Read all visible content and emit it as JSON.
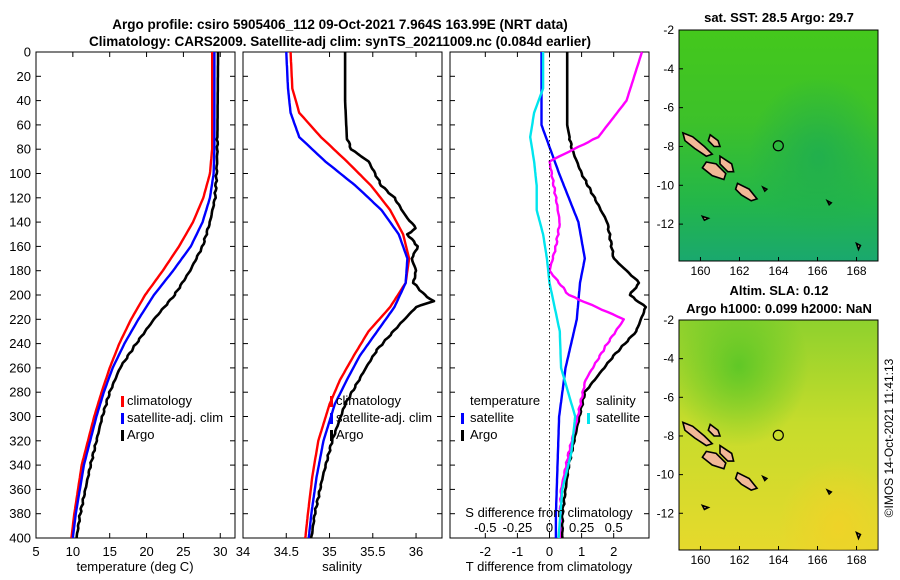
{
  "title_line1": "Argo profile: csiro 5905406_112 09-Oct-2021 7.964S 163.99E (NRT data)",
  "title_line2": "Climatology: CARS2009. Satellite-adj clim: synTS_20211009.nc (0.084d earlier)",
  "right_top_title": "sat. SST: 28.5 Argo: 29.7",
  "right_bottom_title1": "Altim. SLA: 0.12",
  "right_bottom_title2": "Argo h1000: 0.099 h2000: NaN",
  "credit": "©IMOS 14-Oct-2021 11:41:13",
  "colors": {
    "climatology": "#ff0000",
    "satellite": "#0000ff",
    "argo": "#000000",
    "salinity_diff": "#ff00ff",
    "satellite_s_diff": "#00e5ee"
  },
  "chart_data": [
    {
      "type": "line",
      "name": "temperature",
      "xlabel": "temperature (deg C)",
      "xlim": [
        5,
        32
      ],
      "xticks": [
        "5",
        "10",
        "15",
        "20",
        "25",
        "30"
      ],
      "ylim": [
        0,
        400
      ],
      "yticks": [
        "0",
        "20",
        "40",
        "60",
        "80",
        "100",
        "120",
        "140",
        "160",
        "180",
        "200",
        "220",
        "240",
        "260",
        "280",
        "300",
        "320",
        "340",
        "360",
        "380",
        "400"
      ],
      "legend": [
        "climatology",
        "satellite-adj. clim",
        "Argo"
      ],
      "series": [
        {
          "name": "climatology",
          "depth": [
            0,
            80,
            100,
            120,
            140,
            160,
            180,
            200,
            220,
            240,
            260,
            280,
            300,
            340,
            380,
            400
          ],
          "values": [
            28.9,
            28.9,
            28.6,
            27.7,
            26.3,
            24.4,
            22.2,
            19.8,
            17.9,
            16.3,
            15.0,
            13.9,
            12.9,
            11.2,
            10.2,
            9.8
          ]
        },
        {
          "name": "satellite-adj. clim",
          "depth": [
            0,
            80,
            100,
            120,
            140,
            160,
            180,
            200,
            220,
            240,
            260,
            280,
            300,
            340,
            380,
            400
          ],
          "values": [
            29.2,
            29.2,
            29.1,
            28.6,
            27.6,
            26.0,
            23.6,
            21.0,
            18.9,
            17.0,
            15.4,
            14.2,
            13.2,
            11.5,
            10.4,
            10.0
          ]
        },
        {
          "name": "Argo",
          "depth": [
            0,
            80,
            100,
            120,
            140,
            160,
            180,
            200,
            220,
            240,
            260,
            280,
            300,
            340,
            380,
            400
          ],
          "values": [
            29.7,
            29.6,
            29.5,
            29.3,
            28.6,
            27.6,
            25.9,
            23.8,
            21.0,
            18.6,
            16.4,
            15.0,
            14.0,
            12.4,
            11.0,
            10.5
          ]
        }
      ]
    },
    {
      "type": "line",
      "name": "salinity",
      "xlabel": "salinity",
      "xlim": [
        34,
        36.3
      ],
      "xticks": [
        "34",
        "34.5",
        "35",
        "35.5",
        "36"
      ],
      "ylim": [
        0,
        400
      ],
      "legend": [
        "climatology",
        "satellite-adj. clim",
        "Argo"
      ],
      "series": [
        {
          "name": "climatology",
          "depth": [
            0,
            30,
            50,
            70,
            90,
            110,
            130,
            150,
            170,
            190,
            210,
            230,
            250,
            270,
            290,
            320,
            350,
            380,
            400
          ],
          "values": [
            34.55,
            34.57,
            34.65,
            34.9,
            35.2,
            35.48,
            35.7,
            35.85,
            35.92,
            35.88,
            35.7,
            35.45,
            35.28,
            35.12,
            35.0,
            34.87,
            34.8,
            34.75,
            34.72
          ]
        },
        {
          "name": "satellite-adj. clim",
          "depth": [
            0,
            30,
            50,
            70,
            90,
            110,
            130,
            150,
            170,
            190,
            210,
            230,
            250,
            270,
            290,
            320,
            350,
            380,
            400
          ],
          "values": [
            34.5,
            34.52,
            34.55,
            34.65,
            34.95,
            35.3,
            35.6,
            35.8,
            35.9,
            35.88,
            35.75,
            35.55,
            35.35,
            35.2,
            35.06,
            34.93,
            34.85,
            34.79,
            34.76
          ]
        },
        {
          "name": "Argo",
          "depth": [
            0,
            40,
            70,
            80,
            90,
            110,
            120,
            135,
            145,
            150,
            160,
            170,
            180,
            190,
            200,
            205,
            210,
            225,
            245,
            260,
            290,
            320,
            350,
            380,
            400
          ],
          "values": [
            35.18,
            35.18,
            35.2,
            35.25,
            35.45,
            35.6,
            35.75,
            35.88,
            36.0,
            35.9,
            36.02,
            35.95,
            36.0,
            35.97,
            36.1,
            36.2,
            36.0,
            35.8,
            35.55,
            35.42,
            35.18,
            35.03,
            34.92,
            34.83,
            34.79
          ]
        }
      ]
    },
    {
      "type": "line",
      "name": "difference from climatology",
      "xlabel": "T difference from climatology",
      "xlim": [
        -3.1,
        3.1
      ],
      "xticks": [
        "-2",
        "-1",
        "0",
        "1",
        "2"
      ],
      "top_xlabel": "S difference from climatology",
      "top_xticks": [
        "-0.5",
        "-0.25",
        "0",
        "0.25",
        "0.5"
      ],
      "ylim": [
        0,
        400
      ],
      "legend_temperature": [
        "temperature",
        "satellite",
        "Argo"
      ],
      "legend_salinity": [
        "salinity",
        "satellite"
      ],
      "series": [
        {
          "name": "temperature satellite",
          "depth": [
            0,
            60,
            100,
            140,
            170,
            190,
            220,
            260,
            300,
            340,
            380,
            400
          ],
          "values": [
            -0.25,
            -0.25,
            0.3,
            0.9,
            1.1,
            0.95,
            0.85,
            0.5,
            0.3,
            0.25,
            0.2,
            0.2
          ]
        },
        {
          "name": "temperature Argo",
          "depth": [
            0,
            60,
            80,
            100,
            120,
            140,
            170,
            190,
            200,
            210,
            230,
            250,
            280,
            310,
            340,
            380,
            400
          ],
          "values": [
            0.55,
            0.55,
            0.7,
            1.0,
            1.4,
            1.8,
            2.0,
            2.8,
            2.5,
            3.0,
            2.7,
            2.0,
            1.1,
            0.85,
            0.6,
            0.4,
            0.4
          ]
        },
        {
          "name": "salinity Argo",
          "depth": [
            0,
            40,
            70,
            90,
            120,
            140,
            160,
            180,
            200,
            220,
            240,
            270,
            300,
            330,
            360,
            400
          ],
          "values": [
            0.72,
            0.6,
            0.38,
            0.0,
            0.05,
            0.08,
            0.05,
            0.0,
            0.15,
            0.58,
            0.45,
            0.28,
            0.22,
            0.15,
            0.09,
            0.08
          ]
        },
        {
          "name": "satellite S difference",
          "depth": [
            0,
            30,
            50,
            70,
            90,
            110,
            130,
            150,
            170,
            190,
            210,
            230,
            260,
            300,
            330,
            360,
            400
          ],
          "values": [
            -0.05,
            -0.05,
            -0.12,
            -0.15,
            -0.12,
            -0.1,
            -0.1,
            -0.05,
            -0.02,
            0.0,
            0.04,
            0.08,
            0.09,
            0.2,
            0.17,
            0.1,
            0.07
          ]
        }
      ]
    }
  ],
  "maps": {
    "lon_ticks": [
      "160",
      "162",
      "164",
      "166",
      "168"
    ],
    "lat_ticks": [
      "-2",
      "-4",
      "-6",
      "-8",
      "-10",
      "-12"
    ],
    "argo_location": {
      "lon": 163.99,
      "lat": -7.964
    }
  }
}
